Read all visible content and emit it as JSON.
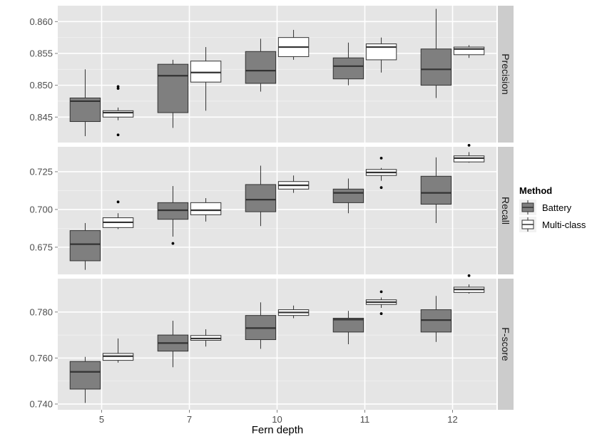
{
  "chart_data": {
    "type": "boxplot",
    "xlabel": "Fern depth",
    "categories": [
      "5",
      "7",
      "10",
      "11",
      "12"
    ],
    "legend": {
      "title": "Method",
      "position": "right",
      "entries": [
        {
          "name": "Battery",
          "color": "#7f7f7f"
        },
        {
          "name": "Multi-class",
          "color": "#ffffff"
        }
      ]
    },
    "background_color": "#e5e5e5",
    "strip_color": "#cccccc",
    "grid": true,
    "panels": [
      {
        "label": "Precision",
        "ylim": [
          0.841,
          0.8625
        ],
        "yticks": [
          0.845,
          0.85,
          0.855,
          0.86
        ],
        "ytick_labels": [
          "0.845",
          "0.850",
          "0.855",
          "0.860"
        ],
        "battery": [
          {
            "min": 0.842,
            "q1": 0.8443,
            "median": 0.8475,
            "q3": 0.848,
            "max": 0.8525,
            "outliers": []
          },
          {
            "min": 0.8433,
            "q1": 0.8457,
            "median": 0.8515,
            "q3": 0.8533,
            "max": 0.854,
            "outliers": []
          },
          {
            "min": 0.849,
            "q1": 0.8503,
            "median": 0.8523,
            "q3": 0.8553,
            "max": 0.8573,
            "outliers": []
          },
          {
            "min": 0.85,
            "q1": 0.851,
            "median": 0.853,
            "q3": 0.8543,
            "max": 0.8567,
            "outliers": []
          },
          {
            "min": 0.848,
            "q1": 0.85,
            "median": 0.8525,
            "q3": 0.8557,
            "max": 0.862,
            "outliers": []
          }
        ],
        "multiclass": [
          {
            "min": 0.8445,
            "q1": 0.845,
            "median": 0.8457,
            "q3": 0.846,
            "max": 0.8465,
            "outliers": [
              0.8495,
              0.8498,
              0.8422
            ]
          },
          {
            "min": 0.846,
            "q1": 0.8505,
            "median": 0.852,
            "q3": 0.8538,
            "max": 0.856,
            "outliers": []
          },
          {
            "min": 0.854,
            "q1": 0.8545,
            "median": 0.856,
            "q3": 0.8575,
            "max": 0.8587,
            "outliers": []
          },
          {
            "min": 0.852,
            "q1": 0.854,
            "median": 0.856,
            "q3": 0.8565,
            "max": 0.8575,
            "outliers": []
          },
          {
            "min": 0.8543,
            "q1": 0.8548,
            "median": 0.8557,
            "q3": 0.856,
            "max": 0.8563,
            "outliers": []
          }
        ]
      },
      {
        "label": "Recall",
        "ylim": [
          0.657,
          0.7415
        ],
        "yticks": [
          0.675,
          0.7,
          0.725
        ],
        "ytick_labels": [
          "0.675",
          "0.700",
          "0.725"
        ],
        "battery": [
          {
            "min": 0.66,
            "q1": 0.666,
            "median": 0.677,
            "q3": 0.686,
            "max": 0.691,
            "outliers": []
          },
          {
            "min": 0.682,
            "q1": 0.6935,
            "median": 0.6995,
            "q3": 0.7045,
            "max": 0.7155,
            "outliers": [
              0.6775
            ]
          },
          {
            "min": 0.689,
            "q1": 0.6985,
            "median": 0.7065,
            "q3": 0.7165,
            "max": 0.729,
            "outliers": []
          },
          {
            "min": 0.6975,
            "q1": 0.7045,
            "median": 0.711,
            "q3": 0.7135,
            "max": 0.7205,
            "outliers": []
          },
          {
            "min": 0.691,
            "q1": 0.7035,
            "median": 0.711,
            "q3": 0.722,
            "max": 0.7345,
            "outliers": []
          }
        ],
        "multiclass": [
          {
            "min": 0.687,
            "q1": 0.688,
            "median": 0.6915,
            "q3": 0.6945,
            "max": 0.6975,
            "outliers": [
              0.705
            ]
          },
          {
            "min": 0.692,
            "q1": 0.6965,
            "median": 0.6995,
            "q3": 0.7045,
            "max": 0.7075,
            "outliers": []
          },
          {
            "min": 0.711,
            "q1": 0.7135,
            "median": 0.716,
            "q3": 0.7185,
            "max": 0.7225,
            "outliers": []
          },
          {
            "min": 0.719,
            "q1": 0.7225,
            "median": 0.7245,
            "q3": 0.7265,
            "max": 0.7275,
            "outliers": [
              0.734,
              0.7145
            ]
          },
          {
            "min": 0.731,
            "q1": 0.7315,
            "median": 0.734,
            "q3": 0.7355,
            "max": 0.738,
            "outliers": [
              0.7425
            ]
          }
        ]
      },
      {
        "label": "F-score",
        "ylim": [
          0.7375,
          0.7945
        ],
        "yticks": [
          0.74,
          0.76,
          0.78
        ],
        "ytick_labels": [
          "0.740",
          "0.760",
          "0.780"
        ],
        "battery": [
          {
            "min": 0.7405,
            "q1": 0.7465,
            "median": 0.754,
            "q3": 0.7585,
            "max": 0.7605,
            "outliers": []
          },
          {
            "min": 0.756,
            "q1": 0.763,
            "median": 0.7665,
            "q3": 0.77,
            "max": 0.7762,
            "outliers": []
          },
          {
            "min": 0.764,
            "q1": 0.768,
            "median": 0.773,
            "q3": 0.7785,
            "max": 0.7842,
            "outliers": []
          },
          {
            "min": 0.766,
            "q1": 0.7713,
            "median": 0.7767,
            "q3": 0.7773,
            "max": 0.7805,
            "outliers": []
          },
          {
            "min": 0.767,
            "q1": 0.7713,
            "median": 0.7765,
            "q3": 0.781,
            "max": 0.787,
            "outliers": []
          }
        ],
        "multiclass": [
          {
            "min": 0.758,
            "q1": 0.759,
            "median": 0.7608,
            "q3": 0.762,
            "max": 0.7685,
            "outliers": []
          },
          {
            "min": 0.765,
            "q1": 0.7677,
            "median": 0.7685,
            "q3": 0.7698,
            "max": 0.7725,
            "outliers": []
          },
          {
            "min": 0.7773,
            "q1": 0.7785,
            "median": 0.7798,
            "q3": 0.781,
            "max": 0.7828,
            "outliers": []
          },
          {
            "min": 0.7818,
            "q1": 0.7833,
            "median": 0.7843,
            "q3": 0.7853,
            "max": 0.7863,
            "outliers": [
              0.7888,
              0.7793
            ]
          },
          {
            "min": 0.788,
            "q1": 0.7885,
            "median": 0.7898,
            "q3": 0.7908,
            "max": 0.792,
            "outliers": [
              0.7958
            ]
          }
        ]
      }
    ]
  }
}
